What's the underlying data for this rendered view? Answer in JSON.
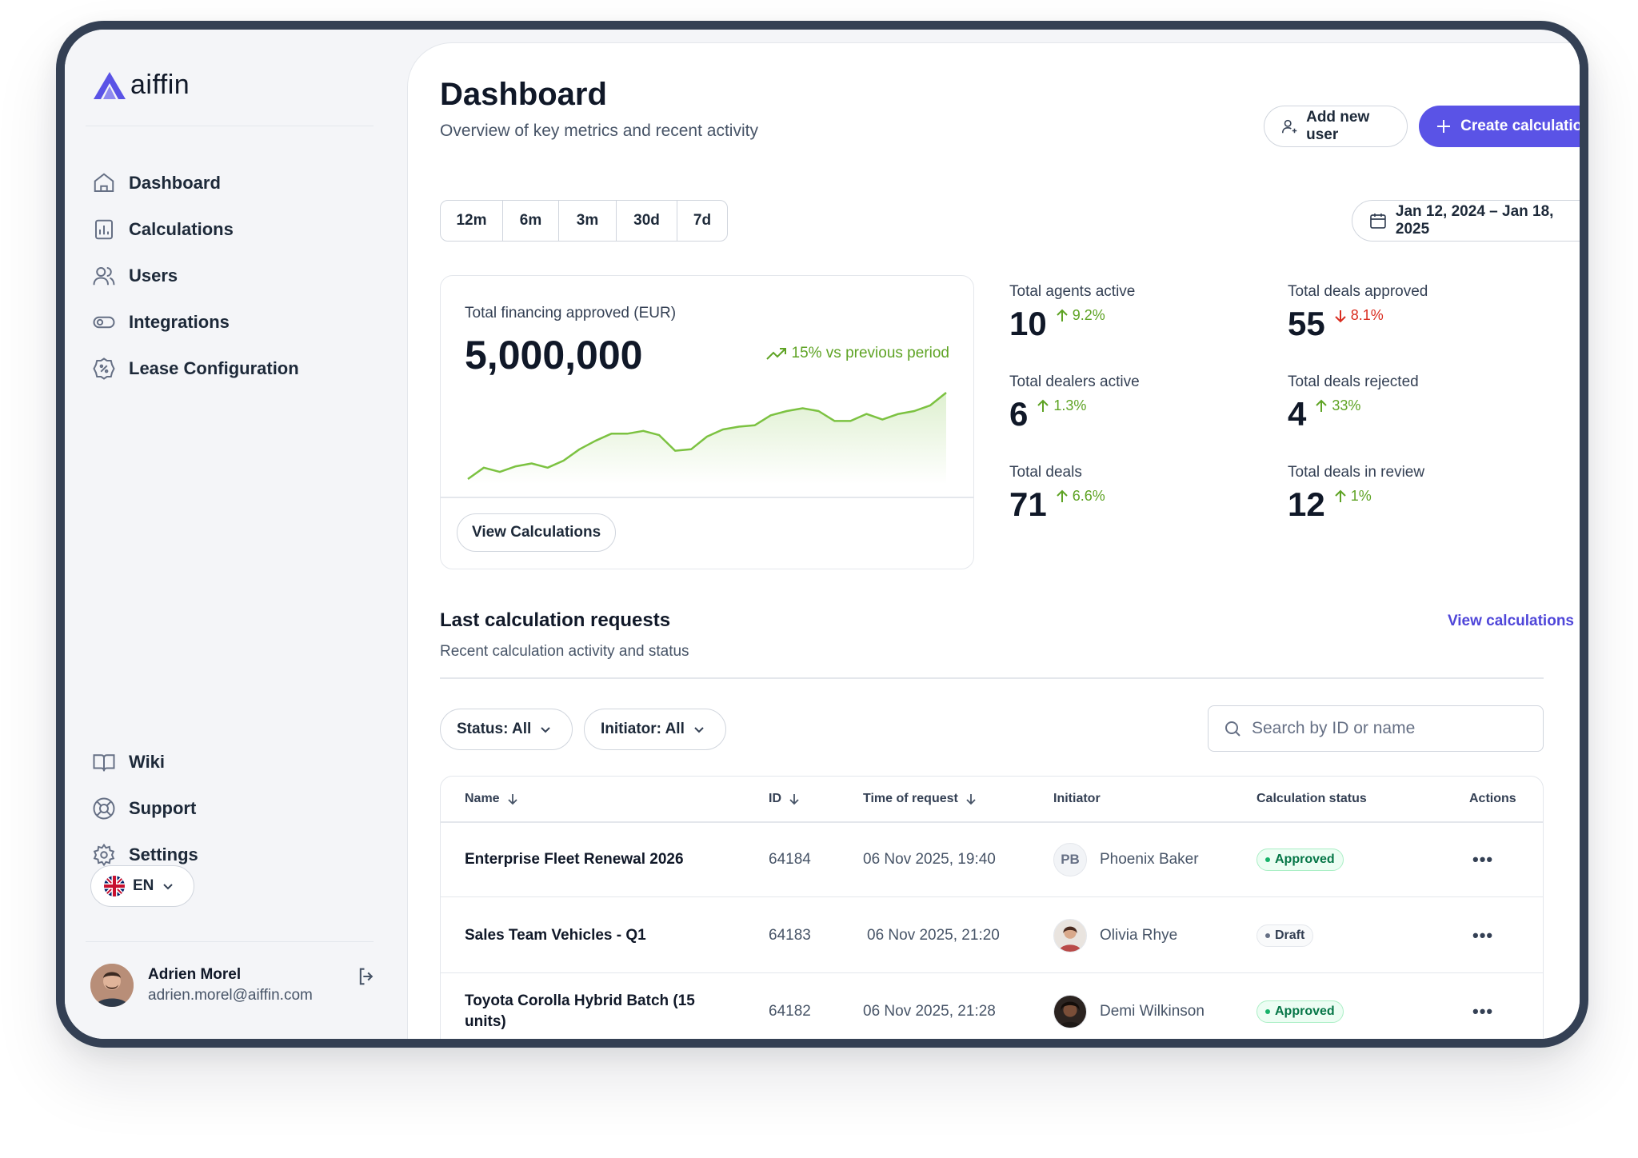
{
  "brand": {
    "name": "aiffin",
    "accent": "#5a53e6"
  },
  "sidebar": {
    "nav": [
      {
        "label": "Dashboard",
        "icon": "home-icon"
      },
      {
        "label": "Calculations",
        "icon": "bar-chart-icon"
      },
      {
        "label": "Users",
        "icon": "users-icon"
      },
      {
        "label": "Integrations",
        "icon": "toggle-icon"
      },
      {
        "label": "Lease Configuration",
        "icon": "percent-badge-icon"
      }
    ],
    "bottom_nav": [
      {
        "label": "Wiki",
        "icon": "book-icon"
      },
      {
        "label": "Support",
        "icon": "lifebuoy-icon"
      },
      {
        "label": "Settings",
        "icon": "gear-icon"
      }
    ],
    "language": "EN",
    "user": {
      "name": "Adrien Morel",
      "email": "adrien.morel@aiffin.com"
    }
  },
  "header": {
    "title": "Dashboard",
    "subtitle": "Overview of key metrics and recent activity",
    "add_user_label": "Add new user",
    "create_label": "Create calculation",
    "periods": [
      "12m",
      "6m",
      "3m",
      "30d",
      "7d"
    ],
    "date_range": "Jan 12, 2024 – Jan 18, 2025"
  },
  "financing_card": {
    "label": "Total financing approved (EUR)",
    "value": "5,000,000",
    "trend": "15% vs previous period",
    "button": "View Calculations",
    "sparkline": [
      12,
      20,
      17,
      21,
      23,
      20,
      25,
      33,
      39,
      44,
      44,
      46,
      43,
      32,
      33,
      42,
      47,
      49,
      50,
      57,
      60,
      62,
      60,
      53,
      53,
      58,
      54,
      58,
      60,
      64,
      73
    ]
  },
  "stats": [
    {
      "label": "Total agents active",
      "value": "10",
      "change": "9.2%",
      "direction": "up"
    },
    {
      "label": "Total deals approved",
      "value": "55",
      "change": "8.1%",
      "direction": "down"
    },
    {
      "label": "Total dealers active",
      "value": "6",
      "change": "1.3%",
      "direction": "up"
    },
    {
      "label": "Total deals rejected",
      "value": "4",
      "change": "33%",
      "direction": "up"
    },
    {
      "label": "Total deals",
      "value": "71",
      "change": "6.6%",
      "direction": "up"
    },
    {
      "label": "Total deals in review",
      "value": "12",
      "change": "1%",
      "direction": "up"
    }
  ],
  "requests": {
    "title": "Last calculation requests",
    "subtitle": "Recent calculation activity and status",
    "view_link": "View calculations",
    "filter_status": "Status: All",
    "filter_initiator": "Initiator: All",
    "search_placeholder": "Search by ID or name",
    "columns": [
      "Name",
      "ID",
      "Time of request",
      "Initiator",
      "Calculation status",
      "Actions"
    ],
    "rows": [
      {
        "name": "Enterprise Fleet Renewal 2026",
        "id": "64184",
        "time": "06 Nov 2025, 19:40",
        "initiator": "Phoenix Baker",
        "initials": "PB",
        "status": "Approved"
      },
      {
        "name": "Sales Team Vehicles - Q1",
        "id": "64183",
        "time": "06 Nov 2025, 21:20",
        "initiator": "Olivia Rhye",
        "initials": "",
        "status": "Draft"
      },
      {
        "name": "Toyota Corolla Hybrid Batch (15 units)",
        "id": "64182",
        "time": "06 Nov 2025, 21:28",
        "initiator": "Demi Wilkinson",
        "initials": "",
        "status": "Approved"
      }
    ],
    "actions_glyph": "•••"
  }
}
